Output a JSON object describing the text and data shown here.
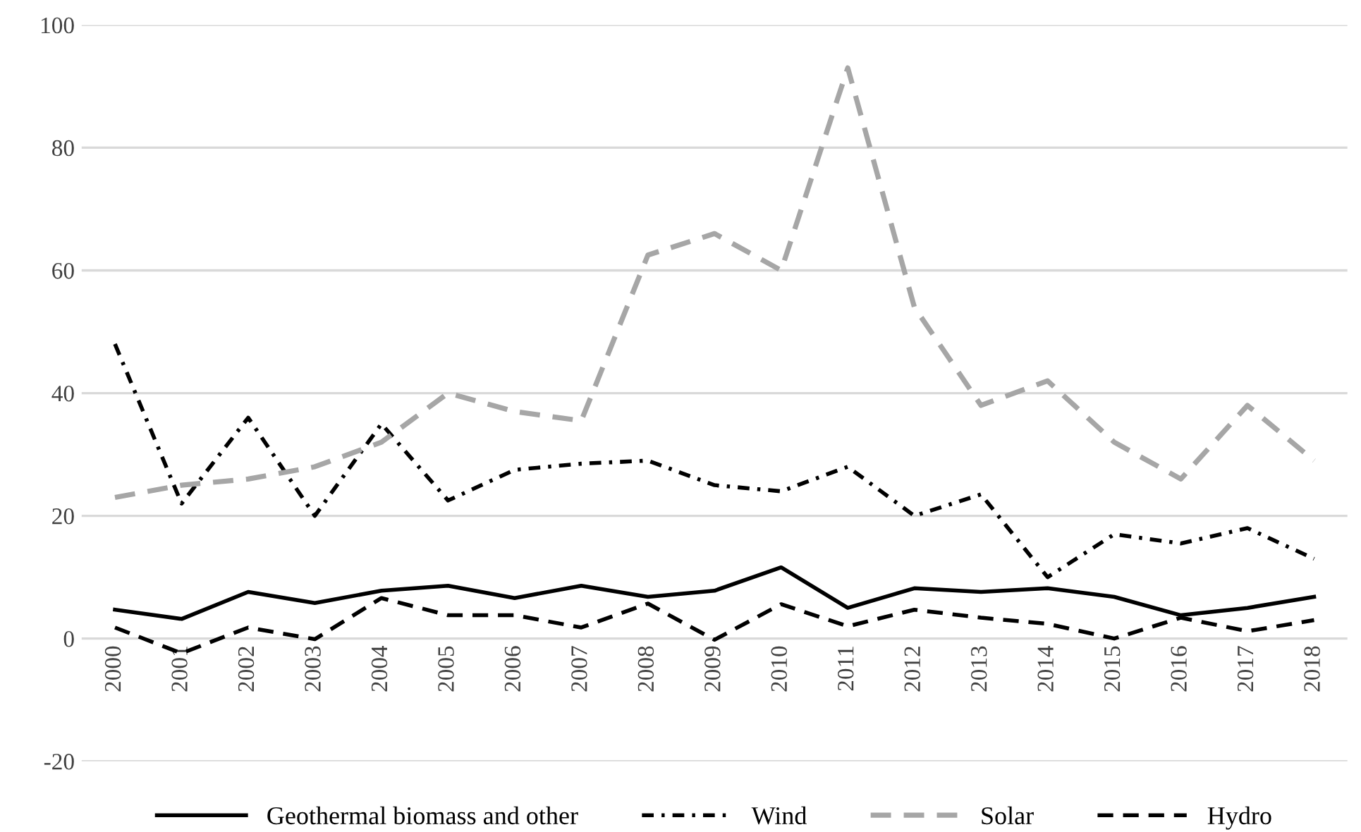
{
  "chart_data": {
    "type": "line",
    "categories": [
      "2000",
      "2001",
      "2002",
      "2003",
      "2004",
      "2005",
      "2006",
      "2007",
      "2008",
      "2009",
      "2010",
      "2011",
      "2012",
      "2013",
      "2014",
      "2015",
      "2016",
      "2017",
      "2018"
    ],
    "series": [
      {
        "name": "Geothermal biomass and other",
        "color": "#000000",
        "line_style": "solid",
        "values": [
          4.7,
          3.2,
          7.6,
          5.8,
          7.8,
          8.6,
          6.6,
          8.6,
          6.8,
          7.8,
          11.6,
          5,
          8.2,
          7.6,
          8.2,
          6.8,
          3.8,
          5,
          6.8
        ]
      },
      {
        "name": "Wind",
        "color": "#000000",
        "line_style": "dashdot",
        "values": [
          48,
          22,
          36,
          20,
          35,
          22.5,
          27.5,
          28.5,
          29,
          25,
          24,
          28,
          20,
          23.5,
          10,
          17,
          15.5,
          18,
          13
        ]
      },
      {
        "name": "Solar",
        "color": "#a6a6a6",
        "line_style": "dashed",
        "values": [
          23,
          25,
          26,
          28,
          32,
          40,
          37,
          35.5,
          62.5,
          66,
          60,
          93,
          54,
          38,
          42,
          32,
          26,
          38,
          29
        ]
      },
      {
        "name": "Hydro",
        "color": "#000000",
        "line_style": "dashed",
        "values": [
          1.8,
          -2.4,
          1.8,
          -0.1,
          6.6,
          3.8,
          3.8,
          1.8,
          5.7,
          -0.2,
          5.6,
          2,
          4.7,
          3.4,
          2.4,
          0,
          3.4,
          1.2,
          3
        ]
      }
    ],
    "ylim": [
      -20,
      100
    ],
    "yticks": [
      -20,
      0,
      20,
      40,
      60,
      80,
      100
    ],
    "grid": "y",
    "legend": "bottom",
    "marker": "none"
  }
}
